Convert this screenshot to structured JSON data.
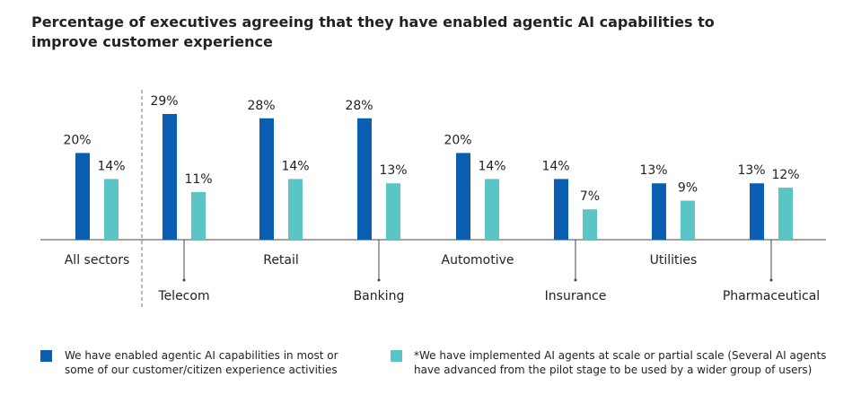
{
  "chart_data": {
    "type": "bar",
    "title": "Percentage of executives agreeing that they have enabled agentic AI capabilities to improve customer experience",
    "categories": [
      "All sectors",
      "Telecom",
      "Retail",
      "Banking",
      "Automotive",
      "Insurance",
      "Utilities",
      "Pharmaceutical"
    ],
    "series": [
      {
        "name": "We have enabled agentic AI capabilities in most or some of our customer/citizen experience activities",
        "color": "#0b5fb3",
        "values": [
          20,
          29,
          28,
          28,
          20,
          14,
          13,
          13
        ],
        "value_labels": [
          "20%",
          "29%",
          "28%",
          "28%",
          "20%",
          "14%",
          "13%",
          "13%"
        ]
      },
      {
        "name": "*We have implemented AI agents at scale or partial scale (Several AI agents have advanced from the pilot stage to be used by a wider group of users)",
        "color": "#5bc5c6",
        "values": [
          14,
          11,
          14,
          13,
          14,
          7,
          9,
          12
        ],
        "value_labels": [
          "14%",
          "11%",
          "14%",
          "13%",
          "14%",
          "7%",
          "9%",
          "12%"
        ]
      }
    ]
  }
}
